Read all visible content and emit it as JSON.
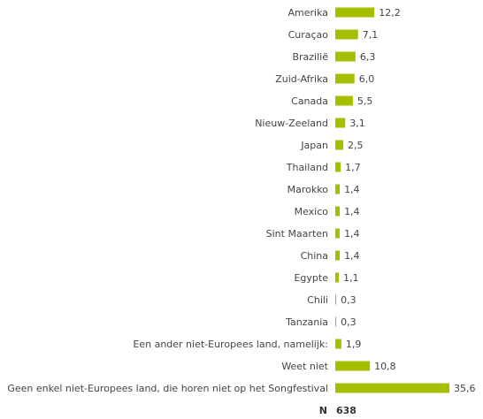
{
  "chart_data": {
    "type": "bar",
    "orientation": "horizontal",
    "title": "",
    "xlabel": "",
    "ylabel": "",
    "xlim": [
      0,
      35.6
    ],
    "grid": false,
    "legend": "none",
    "categories": [
      "Amerika",
      "Curaçao",
      "Brazilië",
      "Zuid-Afrika",
      "Canada",
      "Nieuw-Zeeland",
      "Japan",
      "Thailand",
      "Marokko",
      "Mexico",
      "Sint Maarten",
      "China",
      "Egypte",
      "Chili",
      "Tanzania",
      "Een ander niet-Europees land, namelijk:",
      "Weet niet",
      "Geen enkel niet-Europees land, die horen niet op het Songfestival"
    ],
    "values": [
      12.2,
      7.1,
      6.3,
      6.0,
      5.5,
      3.1,
      2.5,
      1.7,
      1.4,
      1.4,
      1.4,
      1.4,
      1.1,
      0.3,
      0.3,
      1.9,
      10.8,
      35.6
    ],
    "value_labels": [
      "12,2",
      "7,1",
      "6,3",
      "6,0",
      "5,5",
      "3,1",
      "2,5",
      "1,7",
      "1,4",
      "1,4",
      "1,4",
      "1,4",
      "1,1",
      "0,3",
      "0,3",
      "1,9",
      "10,8",
      "35,6"
    ],
    "bar_color": "#a5be00",
    "n_label": "N",
    "n_value": "638"
  }
}
